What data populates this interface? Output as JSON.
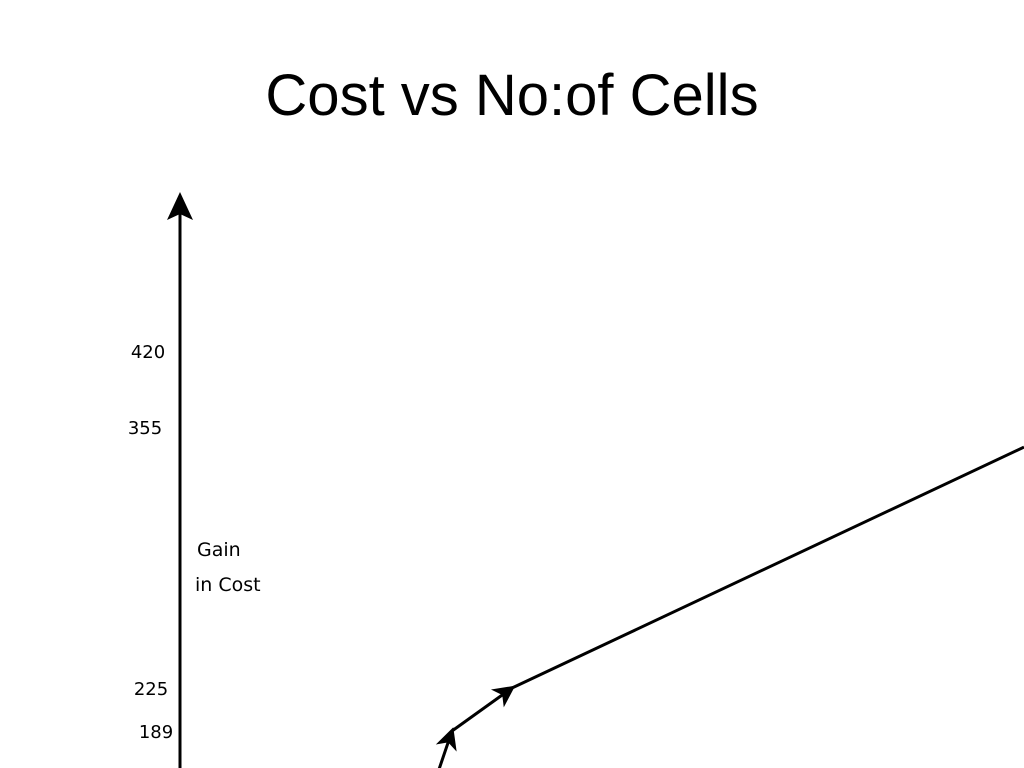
{
  "slide": {
    "title": "Cost vs No:of Cells"
  },
  "chart_data": {
    "type": "line",
    "title": "Cost vs No:of Cells",
    "xlabel": "",
    "ylabel_lines": [
      "Gain",
      "in Cost"
    ],
    "y_ticks": [
      420,
      355,
      225,
      189
    ],
    "series": [
      {
        "points": [
          {
            "x": 0.0,
            "y": 160
          },
          {
            "x": 0.09,
            "y": 189
          },
          {
            "x": 0.31,
            "y": 225
          },
          {
            "x": 2.0,
            "y": 345
          }
        ]
      }
    ],
    "arrow_markers": [
      {
        "x": 0.09,
        "y": 189
      },
      {
        "x": 0.31,
        "y": 225
      }
    ],
    "ylim": [
      160,
      470
    ],
    "xlim": [
      0,
      2.0
    ],
    "grid": false,
    "line_color": "#000000"
  }
}
